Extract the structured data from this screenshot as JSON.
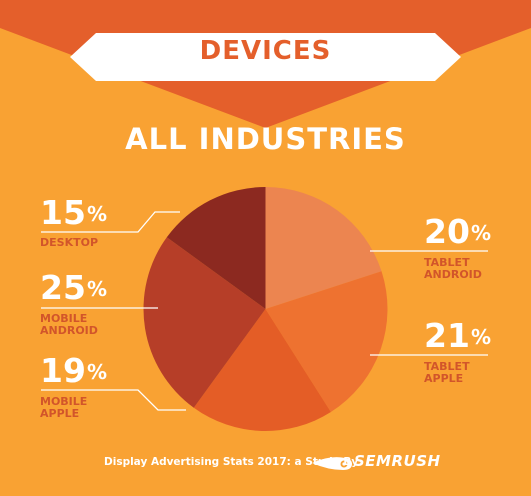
{
  "header": {
    "title": "DEVICES"
  },
  "subtitle": "ALL INDUSTRIES",
  "colors": {
    "background": "#f9a233",
    "banner_top": "#e45f2b",
    "label_text": "#d2552a"
  },
  "chart_data": {
    "type": "pie",
    "title": "ALL INDUSTRIES",
    "unit": "%",
    "slices": [
      {
        "name": "TABLET ANDROID",
        "value": 20,
        "color": "#ec8550",
        "label_lines": [
          "TABLET",
          "ANDROID"
        ]
      },
      {
        "name": "TABLET APPLE",
        "value": 21,
        "color": "#ee7230",
        "label_lines": [
          "TABLET",
          "APPLE"
        ]
      },
      {
        "name": "MOBILE APPLE",
        "value": 19,
        "color": "#e45d26",
        "label_lines": [
          "MOBILE",
          "APPLE"
        ]
      },
      {
        "name": "MOBILE ANDROID",
        "value": 25,
        "color": "#b63e28",
        "label_lines": [
          "MOBILE",
          "ANDROID"
        ]
      },
      {
        "name": "DESKTOP",
        "value": 15,
        "color": "#8c2920",
        "label_lines": [
          "DESKTOP"
        ]
      }
    ],
    "start_angle": "top, clockwise"
  },
  "footer": {
    "text": "Display Advertising Stats 2017: a Study By",
    "brand": "SEMRUSH"
  }
}
